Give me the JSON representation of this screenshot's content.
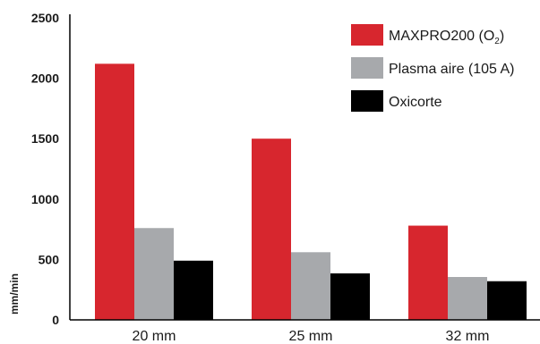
{
  "chart_data": {
    "type": "bar",
    "title": "",
    "xlabel": "",
    "ylabel": "mm/min",
    "ylim": [
      0,
      2500
    ],
    "yticks": [
      0,
      500,
      1000,
      1500,
      2000,
      2500
    ],
    "categories": [
      "20 mm",
      "25 mm",
      "32 mm"
    ],
    "series": [
      {
        "name": "MAXPRO200 (O2)",
        "legend_main": "MAXPRO200 (O",
        "legend_sub": "2",
        "legend_tail": ")",
        "color": "#d7262e",
        "values": [
          2120,
          1500,
          780
        ]
      },
      {
        "name": "Plasma aire (105 A)",
        "color": "#a7a9ac",
        "values": [
          760,
          560,
          355
        ]
      },
      {
        "name": "Oxicorte",
        "color": "#000000",
        "values": [
          490,
          385,
          320
        ]
      }
    ],
    "grid": false,
    "legend_position": "top-right"
  }
}
